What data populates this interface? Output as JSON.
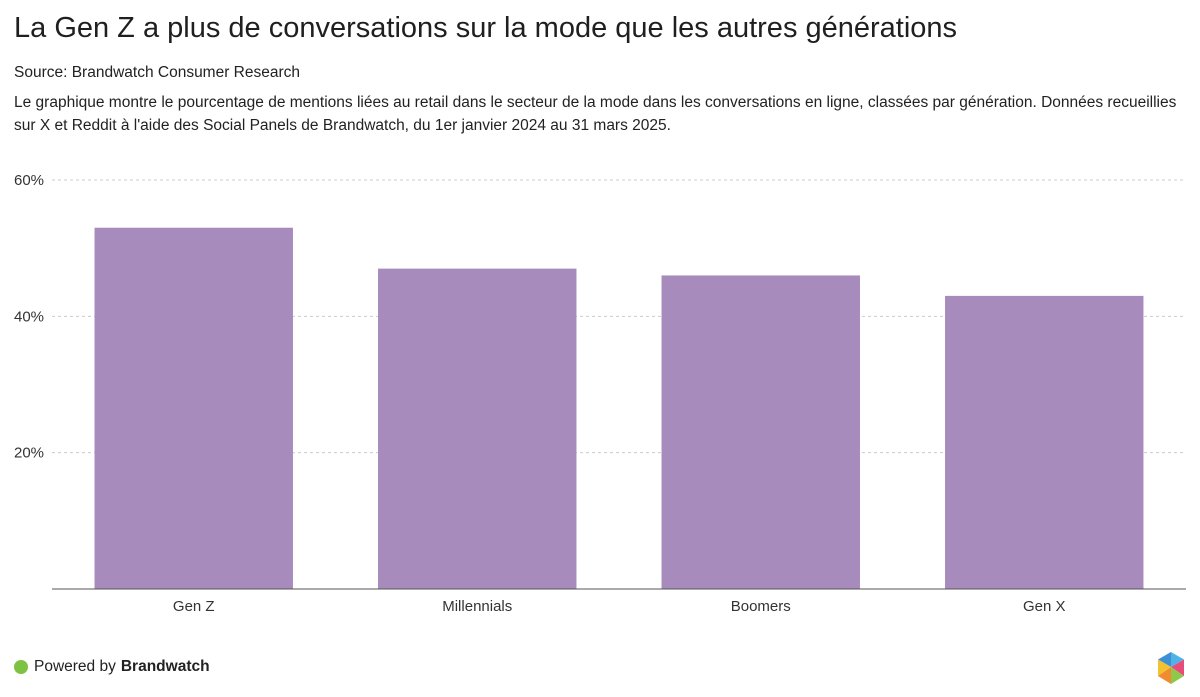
{
  "header": {
    "title": "La Gen Z a plus de conversations sur la mode que les autres générations",
    "source": "Source: Brandwatch Consumer Research",
    "description": "Le graphique montre le pourcentage de mentions liées au retail dans le secteur de la mode dans les conversations en ligne, classées par génération. Données recueillies sur X et Reddit à l'aide des Social Panels de Brandwatch, du 1er janvier 2024 au 31 mars 2025."
  },
  "chart_data": {
    "type": "bar",
    "categories": [
      "Gen Z",
      "Millennials",
      "Boomers",
      "Gen X"
    ],
    "values": [
      53,
      47,
      46,
      43
    ],
    "ylim": [
      0,
      60
    ],
    "yticks": [
      20,
      40,
      60
    ],
    "ytick_labels": [
      "20%",
      "40%",
      "60%"
    ],
    "xlabel": "",
    "ylabel": "",
    "grid": true,
    "bar_color": "#a78bbd",
    "grid_color": "#cccccc",
    "axis_color": "#555555"
  },
  "footer": {
    "powered_by": "Powered by",
    "brand": "Brandwatch",
    "dot_color": "#7dc242"
  }
}
